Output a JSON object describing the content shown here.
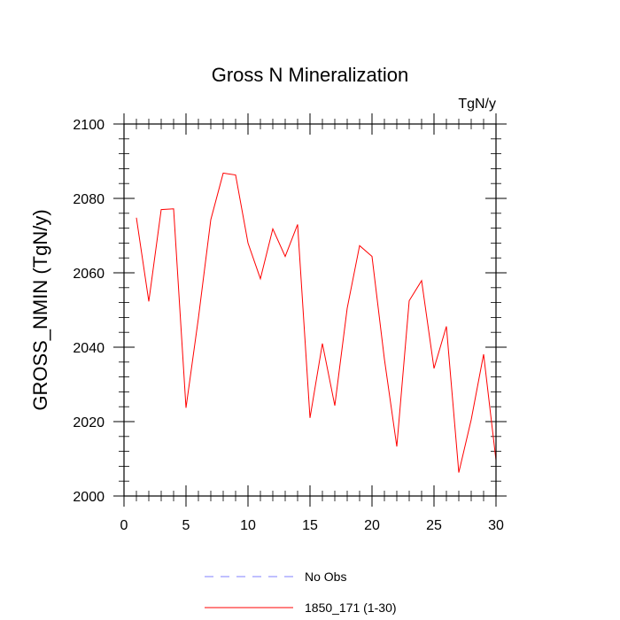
{
  "chart_data": {
    "type": "line",
    "title": "Gross N Mineralization",
    "units_label": "TgN/y",
    "ylabel": "GROSS_NMIN  (TgN/y)",
    "xlabel": "",
    "xlim": [
      0,
      30
    ],
    "ylim": [
      2000,
      2100
    ],
    "x_ticks": [
      0,
      5,
      10,
      15,
      20,
      25,
      30
    ],
    "y_ticks": [
      2000,
      2020,
      2040,
      2060,
      2080,
      2100
    ],
    "series": [
      {
        "name": "1850_171 (1-30)",
        "color": "#ff0000",
        "style": "solid",
        "x": [
          1,
          2,
          3,
          4,
          5,
          6,
          7,
          8,
          9,
          10,
          11,
          12,
          13,
          14,
          15,
          16,
          17,
          18,
          19,
          20,
          21,
          22,
          23,
          24,
          25,
          26,
          27,
          28,
          29,
          30
        ],
        "values": [
          2074.8,
          2052.3,
          2077,
          2077.2,
          2023.7,
          2047.8,
          2074.3,
          2086.8,
          2086.3,
          2068,
          2058.4,
          2071.8,
          2064.4,
          2073,
          2021,
          2041,
          2024.3,
          2050.5,
          2067.3,
          2064.4,
          2036.8,
          2013.3,
          2052.5,
          2057.9,
          2034.3,
          2045.6,
          2006.3,
          2020.5,
          2038.1,
          2009.6
        ]
      }
    ],
    "legend": {
      "placement": "bottom-center",
      "entries": [
        {
          "label": "No Obs",
          "color": "#8080ff",
          "style": "dashed"
        },
        {
          "label": "1850_171 (1-30)",
          "color": "#ff0000",
          "style": "solid"
        }
      ]
    }
  }
}
